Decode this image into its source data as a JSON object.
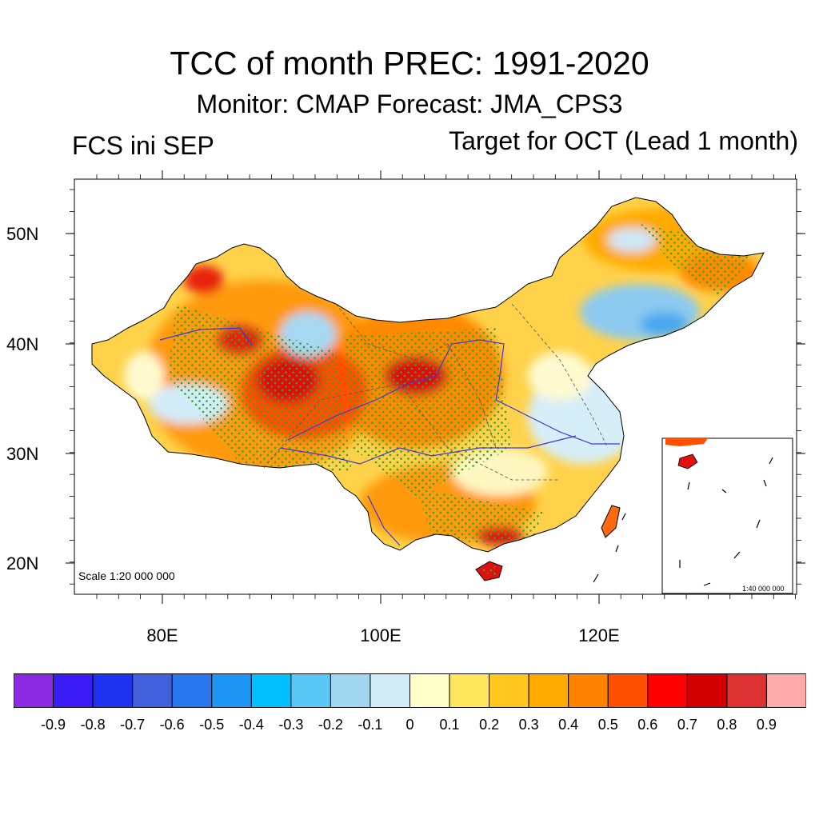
{
  "title": "TCC of month PREC: 1991-2020",
  "subtitle": "Monitor: CMAP   Forecast: JMA_CPS3",
  "left_label": "FCS ini SEP",
  "right_label": "Target for OCT (Lead 1 month)",
  "map": {
    "lat_labels": [
      "50N",
      "40N",
      "30N",
      "20N"
    ],
    "lon_labels": [
      "80E",
      "100E",
      "120E"
    ],
    "scale_text": "Scale 1:20 000 000",
    "inset_scale_text": "1:40 000 000"
  },
  "colorbar": {
    "colors": [
      "#8a2be2",
      "#3c1cf5",
      "#1e32f0",
      "#4060dc",
      "#2a78f0",
      "#1e96f5",
      "#00c0ff",
      "#5ac8f5",
      "#a0d6f0",
      "#d2ecf8",
      "#ffffc8",
      "#ffe65a",
      "#ffc81e",
      "#ffaa00",
      "#ff8200",
      "#ff5000",
      "#ff0000",
      "#d20000",
      "#dc3232",
      "#ffaaaa"
    ],
    "labels": [
      "-0.9",
      "-0.8",
      "-0.7",
      "-0.6",
      "-0.5",
      "-0.4",
      "-0.3",
      "-0.2",
      "-0.1",
      "0",
      "0.1",
      "0.2",
      "0.3",
      "0.4",
      "0.5",
      "0.6",
      "0.7",
      "0.8",
      "0.9"
    ]
  }
}
